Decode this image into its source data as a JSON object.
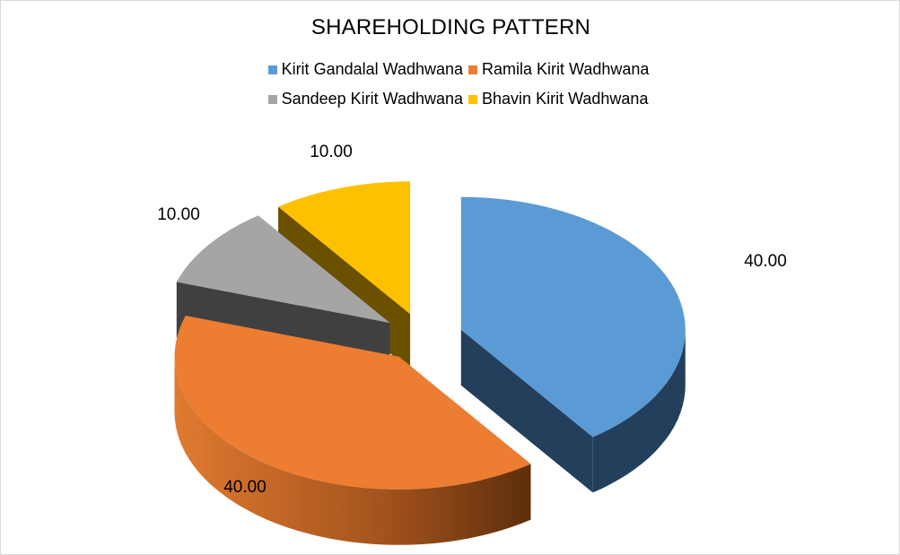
{
  "chart_data": {
    "type": "pie",
    "title": "SHAREHOLDING PATTERN",
    "categories": [
      "Kirit Gandalal Wadhwana",
      "Ramila Kirit Wadhwana",
      "Sandeep Kirit Wadhwana",
      "Bhavin Kirit Wadhwana"
    ],
    "values": [
      40.0,
      40.0,
      10.0,
      10.0
    ],
    "data_labels": [
      "40.00",
      "40.00",
      "10.00",
      "10.00"
    ],
    "colors": [
      "#5b9bd5",
      "#ed7d31",
      "#a5a5a5",
      "#ffc000"
    ],
    "style": "3d-exploded",
    "legend_position": "top"
  }
}
